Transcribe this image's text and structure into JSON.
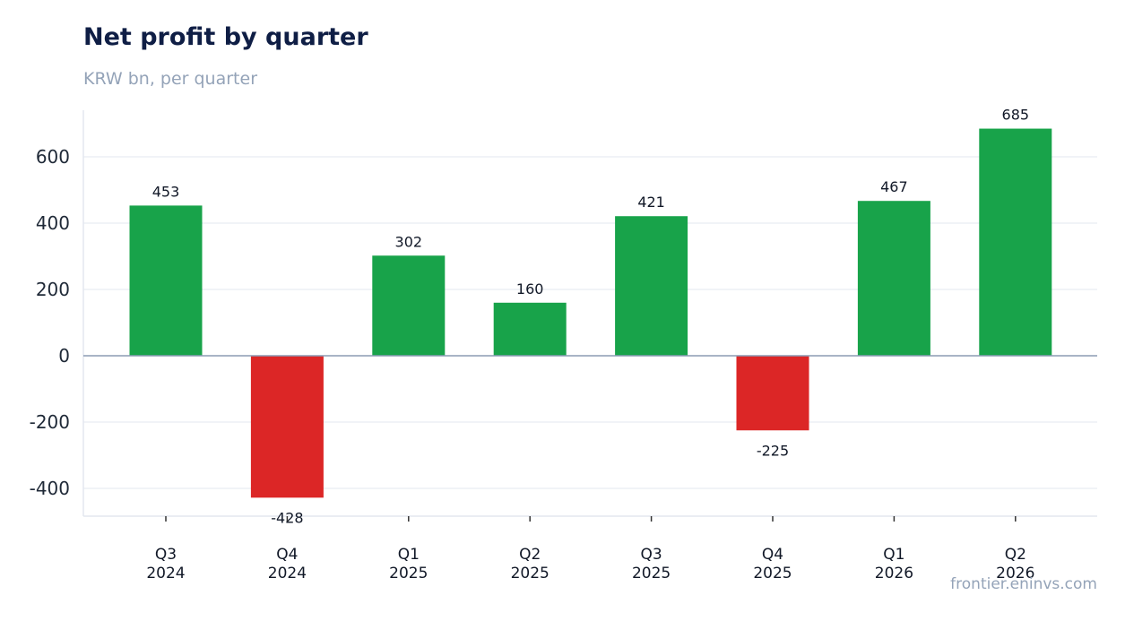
{
  "chart_data": {
    "type": "bar",
    "title": "Net profit by quarter",
    "subtitle": "KRW bn, per quarter",
    "categories": [
      [
        "Q3",
        "2024"
      ],
      [
        "Q4",
        "2024"
      ],
      [
        "Q1",
        "2025"
      ],
      [
        "Q2",
        "2025"
      ],
      [
        "Q3",
        "2025"
      ],
      [
        "Q4",
        "2025"
      ],
      [
        "Q1",
        "2026"
      ],
      [
        "Q2",
        "2026"
      ]
    ],
    "values": [
      453,
      -428,
      302,
      160,
      421,
      -225,
      467,
      685
    ],
    "value_labels": [
      "453",
      "-428",
      "302",
      "160",
      "421",
      "-225",
      "467",
      "685"
    ],
    "ylim": [
      -485,
      740
    ],
    "yticks": [
      600,
      400,
      200,
      0,
      -200,
      -400
    ],
    "grid": true,
    "positive_color": "#18a34a",
    "negative_color": "#dc2626",
    "source": "frontier.eninvs.com"
  }
}
